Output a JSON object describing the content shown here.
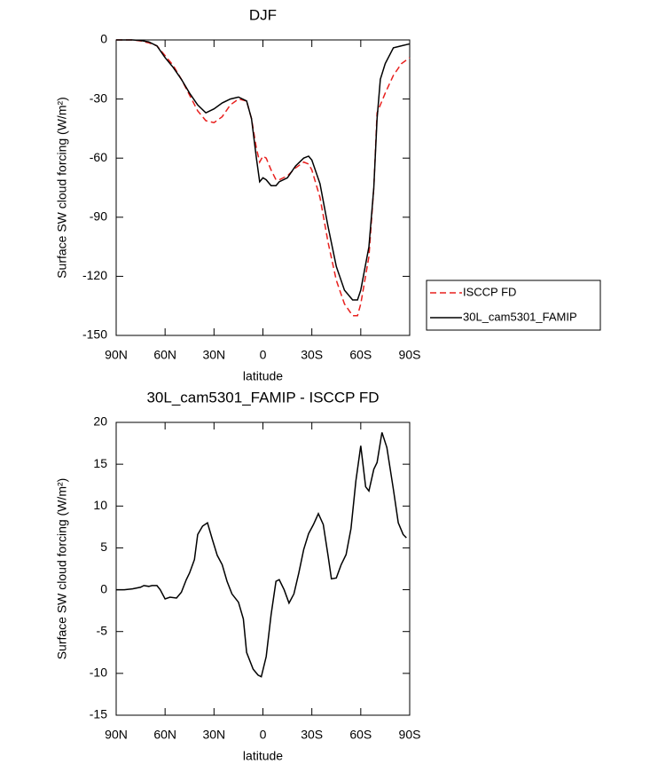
{
  "chart_data": [
    {
      "type": "line",
      "title": "DJF",
      "xlabel": "latitude",
      "ylabel": "Surface SW cloud forcing (W/m²)",
      "x": [
        90,
        85,
        80,
        75,
        70,
        65,
        60,
        55,
        50,
        45,
        40,
        35,
        30,
        25,
        20,
        15,
        10,
        7,
        4,
        2,
        0,
        -2,
        -5,
        -8,
        -10,
        -15,
        -20,
        -25,
        -28,
        -30,
        -35,
        -40,
        -45,
        -50,
        -55,
        -58,
        -60,
        -65,
        -68,
        -70,
        -72,
        -75,
        -80,
        -85,
        -90
      ],
      "series": [
        {
          "name": "ISCCP FD",
          "color": "#e8201e",
          "dashed": true,
          "values": [
            0,
            0,
            0,
            -0.5,
            -1.5,
            -3,
            -8,
            -13,
            -20,
            -28,
            -36,
            -41,
            -42,
            -39,
            -33,
            -30,
            -31,
            -40,
            -55,
            -62,
            -59,
            -60,
            -66,
            -71,
            -71,
            -69,
            -65,
            -62,
            -63,
            -66,
            -80,
            -103,
            -122,
            -134,
            -140,
            -140,
            -134,
            -110,
            -75,
            -37,
            -33,
            -27,
            -18,
            -12,
            -9
          ]
        },
        {
          "name": "30L_cam5301_FAMIP",
          "color": "#000000",
          "dashed": false,
          "values": [
            0,
            0,
            0,
            -0.3,
            -1,
            -3,
            -9,
            -14,
            -20,
            -27,
            -33,
            -37,
            -35,
            -32,
            -30,
            -29,
            -31,
            -40,
            -60,
            -72,
            -70,
            -71,
            -74,
            -74,
            -72,
            -70,
            -64,
            -60,
            -59,
            -61,
            -73,
            -95,
            -115,
            -127,
            -132,
            -132,
            -127,
            -105,
            -75,
            -40,
            -20,
            -12,
            -4,
            -3,
            -2
          ]
        }
      ],
      "xlim": [
        90,
        -90
      ],
      "ylim": [
        -150,
        0
      ],
      "xticks": [
        {
          "value": 90,
          "label": "90N"
        },
        {
          "value": 60,
          "label": "60N"
        },
        {
          "value": 30,
          "label": "30N"
        },
        0,
        {
          "value": -30,
          "label": "30S"
        },
        {
          "value": -60,
          "label": "60S"
        },
        {
          "value": -90,
          "label": "90S"
        }
      ],
      "yticks": [
        -150,
        -120,
        -90,
        -60,
        -30,
        0
      ],
      "legend": "outside right"
    },
    {
      "type": "line",
      "title": "30L_cam5301_FAMIP - ISCCP FD",
      "xlabel": "latitude",
      "ylabel": "Surface SW cloud forcing (W/m²)",
      "x": [
        90,
        85,
        80,
        75,
        73,
        70,
        68,
        65,
        63,
        60,
        57,
        53,
        50,
        47,
        45,
        42,
        40,
        37,
        34,
        31,
        28,
        25,
        22,
        19,
        15,
        12,
        10,
        6,
        3,
        1,
        -2,
        -5,
        -8,
        -10,
        -13,
        -16,
        -19,
        -22,
        -25,
        -28,
        -31,
        -34,
        -37,
        -40,
        -42,
        -45,
        -48,
        -51,
        -54,
        -57,
        -60,
        -63,
        -65,
        -68,
        -70,
        -73,
        -76,
        -80,
        -83,
        -86,
        -88
      ],
      "series": [
        {
          "color": "#000000",
          "dashed": false,
          "values": [
            0,
            0,
            0.1,
            0.3,
            0.5,
            0.4,
            0.5,
            0.5,
            0,
            -1.1,
            -0.9,
            -1,
            -0.3,
            1.2,
            2,
            3.6,
            6.6,
            7.6,
            8,
            6,
            4.1,
            3,
            1,
            -0.5,
            -1.5,
            -3.5,
            -7.5,
            -9.5,
            -10.2,
            -10.4,
            -8,
            -3,
            1,
            1.2,
            0,
            -1.6,
            -0.5,
            2,
            4.8,
            6.7,
            7.8,
            9.1,
            7.8,
            4,
            1.3,
            1.4,
            3,
            4.2,
            7.3,
            13,
            17.2,
            12.3,
            11.8,
            14.4,
            15.2,
            18.8,
            17,
            12,
            8,
            6.6,
            6.2
          ]
        }
      ],
      "xlim": [
        90,
        -90
      ],
      "ylim": [
        -15,
        20
      ],
      "xticks": [
        {
          "value": 90,
          "label": "90N"
        },
        {
          "value": 60,
          "label": "60N"
        },
        {
          "value": 30,
          "label": "30N"
        },
        0,
        {
          "value": -30,
          "label": "30S"
        },
        {
          "value": -60,
          "label": "60S"
        },
        {
          "value": -90,
          "label": "90S"
        }
      ],
      "yticks": [
        -15,
        -10,
        -5,
        0,
        5,
        10,
        15,
        20
      ]
    }
  ]
}
